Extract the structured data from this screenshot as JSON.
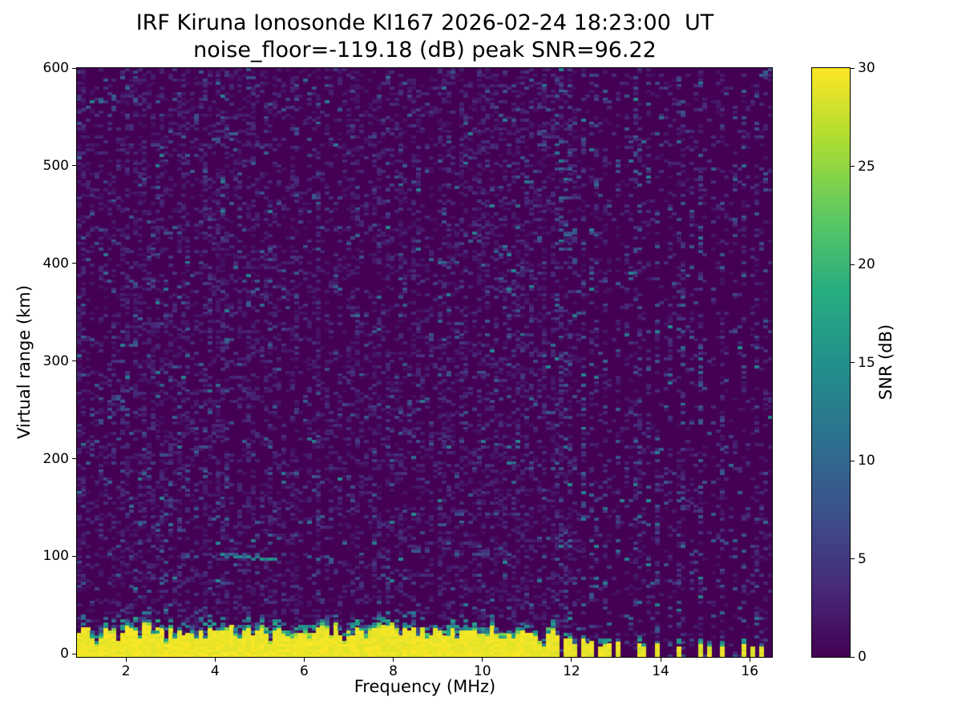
{
  "chart_data": {
    "type": "heatmap",
    "title": "IRF Kiruna Ionosonde KI167 2026-02-24 18:23:00  UT",
    "subtitle": "noise_floor=-119.18 (dB) peak SNR=96.22",
    "xlabel": "Frequency (MHz)",
    "ylabel": "Virtual range (km)",
    "xlim": [
      0.9,
      16.5
    ],
    "ylim": [
      -3,
      600
    ],
    "xticks": [
      2,
      4,
      6,
      8,
      10,
      12,
      14,
      16
    ],
    "yticks": [
      0,
      100,
      200,
      300,
      400,
      500,
      600
    ],
    "grid": {
      "cols": 160,
      "rows": 220
    },
    "colorbar": {
      "label": "SNR (dB)",
      "ticks": [
        0,
        5,
        10,
        15,
        20,
        25,
        30
      ],
      "vmin": 0,
      "vmax": 30,
      "colormap": "viridis",
      "colormap_anchors": [
        [
          0.0,
          "#440154"
        ],
        [
          0.125,
          "#472d7b"
        ],
        [
          0.25,
          "#3b528b"
        ],
        [
          0.375,
          "#2c728e"
        ],
        [
          0.5,
          "#21918c"
        ],
        [
          0.625,
          "#28ae80"
        ],
        [
          0.75,
          "#5ec962"
        ],
        [
          0.875,
          "#aadc32"
        ],
        [
          1.0,
          "#fde725"
        ]
      ]
    },
    "background_snr": 0,
    "ground_clutter": {
      "freq_start": 0.9,
      "freq_end": 11.62,
      "solid_top_km_min": 16,
      "solid_top_km_max": 30,
      "fuzz_km": 16,
      "notch_probability": 0.07,
      "snr": 30
    },
    "clutter_stubs": [
      {
        "freq": 11.7,
        "top_km": 18
      },
      {
        "freq": 11.82,
        "top_km": 15
      },
      {
        "freq": 11.95,
        "top_km": 17
      },
      {
        "freq": 12.08,
        "top_km": 12
      },
      {
        "freq": 12.22,
        "top_km": 15
      },
      {
        "freq": 12.35,
        "top_km": 10
      },
      {
        "freq": 12.48,
        "top_km": 13
      },
      {
        "freq": 12.62,
        "top_km": 9
      },
      {
        "freq": 12.75,
        "top_km": 12
      },
      {
        "freq": 12.88,
        "top_km": 10
      },
      {
        "freq": 13.0,
        "top_km": 13
      },
      {
        "freq": 13.08,
        "top_km": 7
      },
      {
        "freq": 13.48,
        "top_km": 12
      },
      {
        "freq": 13.58,
        "top_km": 7
      },
      {
        "freq": 13.95,
        "top_km": 11
      },
      {
        "freq": 14.45,
        "top_km": 9
      },
      {
        "freq": 14.92,
        "top_km": 11
      },
      {
        "freq": 15.05,
        "top_km": 7
      },
      {
        "freq": 15.42,
        "top_km": 9
      },
      {
        "freq": 15.88,
        "top_km": 11
      },
      {
        "freq": 16.02,
        "top_km": 7
      },
      {
        "freq": 16.3,
        "top_km": 8
      }
    ],
    "rfi_columns": [
      {
        "freq": 2.85,
        "intensity": 0.12
      },
      {
        "freq": 4.25,
        "intensity": 0.12
      },
      {
        "freq": 6.3,
        "intensity": 0.1
      },
      {
        "freq": 9.55,
        "intensity": 0.12
      },
      {
        "freq": 10.65,
        "intensity": 0.1
      },
      {
        "freq": 11.72,
        "intensity": 0.55
      },
      {
        "freq": 11.85,
        "intensity": 0.4
      },
      {
        "freq": 11.98,
        "intensity": 0.5
      },
      {
        "freq": 12.1,
        "intensity": 0.3
      },
      {
        "freq": 12.24,
        "intensity": 0.45
      },
      {
        "freq": 12.5,
        "intensity": 0.35
      },
      {
        "freq": 12.76,
        "intensity": 0.35
      },
      {
        "freq": 13.02,
        "intensity": 0.4
      },
      {
        "freq": 13.28,
        "intensity": 0.2
      },
      {
        "freq": 13.48,
        "intensity": 0.38
      },
      {
        "freq": 13.75,
        "intensity": 0.22
      },
      {
        "freq": 13.95,
        "intensity": 0.38
      },
      {
        "freq": 14.2,
        "intensity": 0.22
      },
      {
        "freq": 14.45,
        "intensity": 0.36
      },
      {
        "freq": 14.7,
        "intensity": 0.2
      },
      {
        "freq": 14.92,
        "intensity": 0.38
      },
      {
        "freq": 15.18,
        "intensity": 0.2
      },
      {
        "freq": 15.42,
        "intensity": 0.36
      },
      {
        "freq": 15.65,
        "intensity": 0.2
      },
      {
        "freq": 15.88,
        "intensity": 0.36
      },
      {
        "freq": 16.15,
        "intensity": 0.25
      },
      {
        "freq": 16.35,
        "intensity": 0.2
      }
    ],
    "echo_traces": [
      {
        "f1": 4.15,
        "f2": 5.3,
        "km1": 101,
        "km2": 97,
        "snr": 13,
        "density": 0.8
      },
      {
        "f1": 8.3,
        "f2": 9.7,
        "km1": 106,
        "km2": 103,
        "snr": 9,
        "density": 0.5
      },
      {
        "f1": 3.1,
        "f2": 3.6,
        "km1": 100,
        "km2": 99,
        "snr": 7,
        "density": 0.35
      },
      {
        "f1": 6.3,
        "f2": 6.65,
        "km1": 97,
        "km2": 95,
        "snr": 8,
        "density": 0.5
      },
      {
        "f1": 9.9,
        "f2": 10.15,
        "km1": 104,
        "km2": 103,
        "snr": 7,
        "density": 0.4
      },
      {
        "f1": 4.4,
        "f2": 5.15,
        "km1": 402,
        "km2": 352,
        "snr": 8,
        "density": 0.55
      },
      {
        "f1": 3.55,
        "f2": 3.95,
        "km1": 257,
        "km2": 244,
        "snr": 7,
        "density": 0.45
      },
      {
        "f1": 2.6,
        "f2": 2.78,
        "km1": 480,
        "km2": 452,
        "snr": 6,
        "density": 0.35
      }
    ],
    "noise": {
      "seed": 167,
      "density_below_max_clutter_freq": 0.4,
      "density_above_max_clutter_freq": 0.14
    }
  }
}
